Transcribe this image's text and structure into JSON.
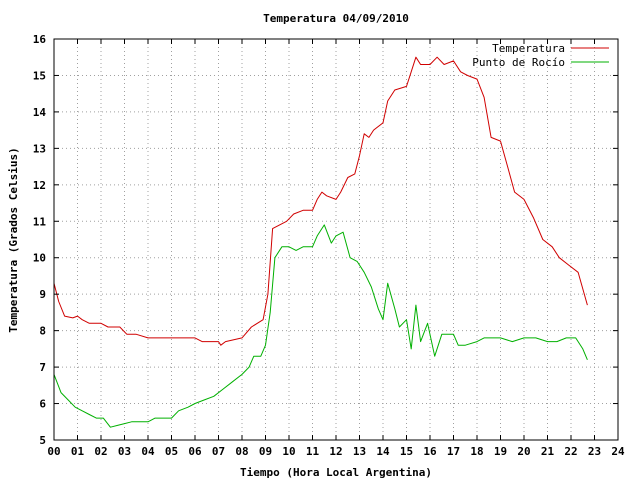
{
  "chart_data": {
    "type": "line",
    "title": "Temperatura 04/09/2010",
    "xlabel": "Tiempo (Hora Local Argentina)",
    "ylabel": "Temperatura (Grados Celsius)",
    "xlim": [
      0,
      24
    ],
    "ylim": [
      5,
      16
    ],
    "x_ticks": [
      "00",
      "01",
      "02",
      "03",
      "04",
      "05",
      "06",
      "07",
      "08",
      "09",
      "10",
      "11",
      "12",
      "13",
      "14",
      "15",
      "16",
      "17",
      "18",
      "19",
      "20",
      "21",
      "22",
      "23",
      "24"
    ],
    "y_ticks": [
      "5",
      "6",
      "7",
      "8",
      "9",
      "10",
      "11",
      "12",
      "13",
      "14",
      "15",
      "16"
    ],
    "grid": true,
    "legend_position": "top-right",
    "series": [
      {
        "name": "Temperatura",
        "color": "#d00000",
        "points": [
          [
            0.0,
            9.3
          ],
          [
            0.2,
            8.8
          ],
          [
            0.45,
            8.4
          ],
          [
            0.8,
            8.35
          ],
          [
            1.0,
            8.4
          ],
          [
            1.2,
            8.3
          ],
          [
            1.5,
            8.2
          ],
          [
            2.0,
            8.2
          ],
          [
            2.3,
            8.1
          ],
          [
            2.8,
            8.1
          ],
          [
            3.1,
            7.9
          ],
          [
            3.5,
            7.9
          ],
          [
            4.0,
            7.8
          ],
          [
            5.0,
            7.8
          ],
          [
            6.0,
            7.8
          ],
          [
            6.3,
            7.7
          ],
          [
            7.0,
            7.7
          ],
          [
            7.1,
            7.6
          ],
          [
            7.3,
            7.7
          ],
          [
            8.0,
            7.8
          ],
          [
            8.4,
            8.1
          ],
          [
            8.9,
            8.3
          ],
          [
            9.1,
            9.0
          ],
          [
            9.3,
            10.8
          ],
          [
            9.6,
            10.9
          ],
          [
            9.9,
            11.0
          ],
          [
            10.2,
            11.2
          ],
          [
            10.6,
            11.3
          ],
          [
            11.0,
            11.3
          ],
          [
            11.2,
            11.6
          ],
          [
            11.4,
            11.8
          ],
          [
            11.6,
            11.7
          ],
          [
            12.0,
            11.6
          ],
          [
            12.2,
            11.8
          ],
          [
            12.5,
            12.2
          ],
          [
            12.8,
            12.3
          ],
          [
            13.0,
            12.8
          ],
          [
            13.2,
            13.4
          ],
          [
            13.4,
            13.3
          ],
          [
            13.6,
            13.5
          ],
          [
            14.0,
            13.7
          ],
          [
            14.2,
            14.3
          ],
          [
            14.5,
            14.6
          ],
          [
            15.0,
            14.7
          ],
          [
            15.2,
            15.1
          ],
          [
            15.4,
            15.5
          ],
          [
            15.6,
            15.3
          ],
          [
            16.0,
            15.3
          ],
          [
            16.3,
            15.5
          ],
          [
            16.6,
            15.3
          ],
          [
            17.0,
            15.4
          ],
          [
            17.3,
            15.1
          ],
          [
            17.6,
            15.0
          ],
          [
            18.0,
            14.9
          ],
          [
            18.3,
            14.4
          ],
          [
            18.6,
            13.3
          ],
          [
            19.0,
            13.2
          ],
          [
            19.3,
            12.5
          ],
          [
            19.6,
            11.8
          ],
          [
            20.0,
            11.6
          ],
          [
            20.4,
            11.1
          ],
          [
            20.8,
            10.5
          ],
          [
            21.2,
            10.3
          ],
          [
            21.5,
            10.0
          ],
          [
            21.9,
            9.8
          ],
          [
            22.3,
            9.6
          ],
          [
            22.7,
            8.7
          ]
        ]
      },
      {
        "name": "Punto de Rocío",
        "color": "#00b000",
        "points": [
          [
            0.0,
            6.8
          ],
          [
            0.3,
            6.3
          ],
          [
            0.6,
            6.1
          ],
          [
            0.9,
            5.9
          ],
          [
            1.2,
            5.8
          ],
          [
            1.5,
            5.7
          ],
          [
            1.8,
            5.6
          ],
          [
            2.1,
            5.6
          ],
          [
            2.4,
            5.35
          ],
          [
            2.7,
            5.4
          ],
          [
            3.0,
            5.45
          ],
          [
            3.3,
            5.5
          ],
          [
            4.0,
            5.5
          ],
          [
            4.3,
            5.6
          ],
          [
            5.0,
            5.6
          ],
          [
            5.3,
            5.8
          ],
          [
            5.7,
            5.9
          ],
          [
            6.0,
            6.0
          ],
          [
            6.4,
            6.1
          ],
          [
            6.8,
            6.2
          ],
          [
            7.2,
            6.4
          ],
          [
            7.6,
            6.6
          ],
          [
            8.0,
            6.8
          ],
          [
            8.3,
            7.0
          ],
          [
            8.5,
            7.3
          ],
          [
            8.8,
            7.3
          ],
          [
            9.0,
            7.6
          ],
          [
            9.2,
            8.5
          ],
          [
            9.4,
            10.0
          ],
          [
            9.7,
            10.3
          ],
          [
            10.0,
            10.3
          ],
          [
            10.3,
            10.2
          ],
          [
            10.6,
            10.3
          ],
          [
            11.0,
            10.3
          ],
          [
            11.2,
            10.6
          ],
          [
            11.5,
            10.9
          ],
          [
            11.8,
            10.4
          ],
          [
            12.0,
            10.6
          ],
          [
            12.3,
            10.7
          ],
          [
            12.6,
            10.0
          ],
          [
            12.9,
            9.9
          ],
          [
            13.2,
            9.6
          ],
          [
            13.5,
            9.2
          ],
          [
            13.8,
            8.6
          ],
          [
            14.0,
            8.3
          ],
          [
            14.2,
            9.3
          ],
          [
            14.5,
            8.6
          ],
          [
            14.7,
            8.1
          ],
          [
            15.0,
            8.3
          ],
          [
            15.2,
            7.5
          ],
          [
            15.4,
            8.7
          ],
          [
            15.6,
            7.7
          ],
          [
            15.9,
            8.2
          ],
          [
            16.2,
            7.3
          ],
          [
            16.5,
            7.9
          ],
          [
            17.0,
            7.9
          ],
          [
            17.2,
            7.6
          ],
          [
            17.5,
            7.6
          ],
          [
            18.0,
            7.7
          ],
          [
            18.3,
            7.8
          ],
          [
            19.0,
            7.8
          ],
          [
            19.5,
            7.7
          ],
          [
            20.0,
            7.8
          ],
          [
            20.5,
            7.8
          ],
          [
            21.0,
            7.7
          ],
          [
            21.4,
            7.7
          ],
          [
            21.8,
            7.8
          ],
          [
            22.2,
            7.8
          ],
          [
            22.5,
            7.5
          ],
          [
            22.7,
            7.2
          ]
        ]
      }
    ]
  }
}
